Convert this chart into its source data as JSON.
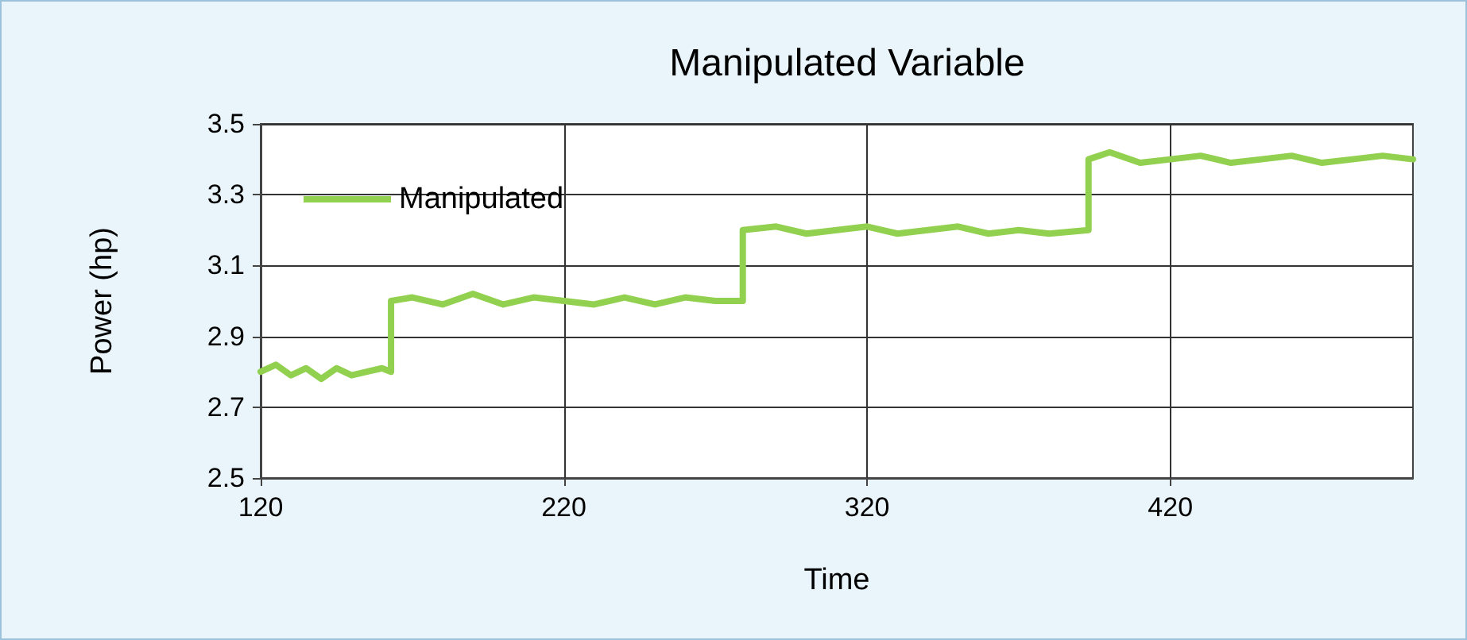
{
  "chart_data": {
    "type": "line",
    "title": "Manipulated Variable",
    "xlabel": "Time",
    "ylabel": "Power (hp)",
    "x": [
      120,
      125,
      130,
      135,
      140,
      145,
      150,
      155,
      160,
      163,
      163,
      170,
      180,
      190,
      200,
      210,
      220,
      230,
      240,
      250,
      260,
      270,
      279,
      279,
      290,
      300,
      310,
      320,
      330,
      340,
      350,
      360,
      370,
      380,
      393,
      393,
      400,
      410,
      420,
      430,
      440,
      450,
      460,
      470,
      480,
      490,
      500
    ],
    "series": [
      {
        "name": "Manipulated",
        "color": "#92d050",
        "values": [
          2.8,
          2.82,
          2.79,
          2.81,
          2.78,
          2.81,
          2.79,
          2.8,
          2.81,
          2.8,
          3.0,
          3.01,
          2.99,
          3.02,
          2.99,
          3.01,
          3.0,
          2.99,
          3.01,
          2.99,
          3.01,
          3.0,
          3.0,
          3.2,
          3.21,
          3.19,
          3.2,
          3.21,
          3.19,
          3.2,
          3.21,
          3.19,
          3.2,
          3.19,
          3.2,
          3.4,
          3.42,
          3.39,
          3.4,
          3.41,
          3.39,
          3.4,
          3.41,
          3.39,
          3.4,
          3.41,
          3.4
        ]
      }
    ],
    "xlim": [
      120,
      500
    ],
    "xticks": [
      120,
      220,
      320,
      420
    ],
    "ylim": [
      2.5,
      3.5
    ],
    "yticks": [
      2.5,
      2.7,
      2.9,
      3.1,
      3.3,
      3.5
    ],
    "grid": true,
    "legend": "top left",
    "marker": "none",
    "line_style": "solid"
  }
}
